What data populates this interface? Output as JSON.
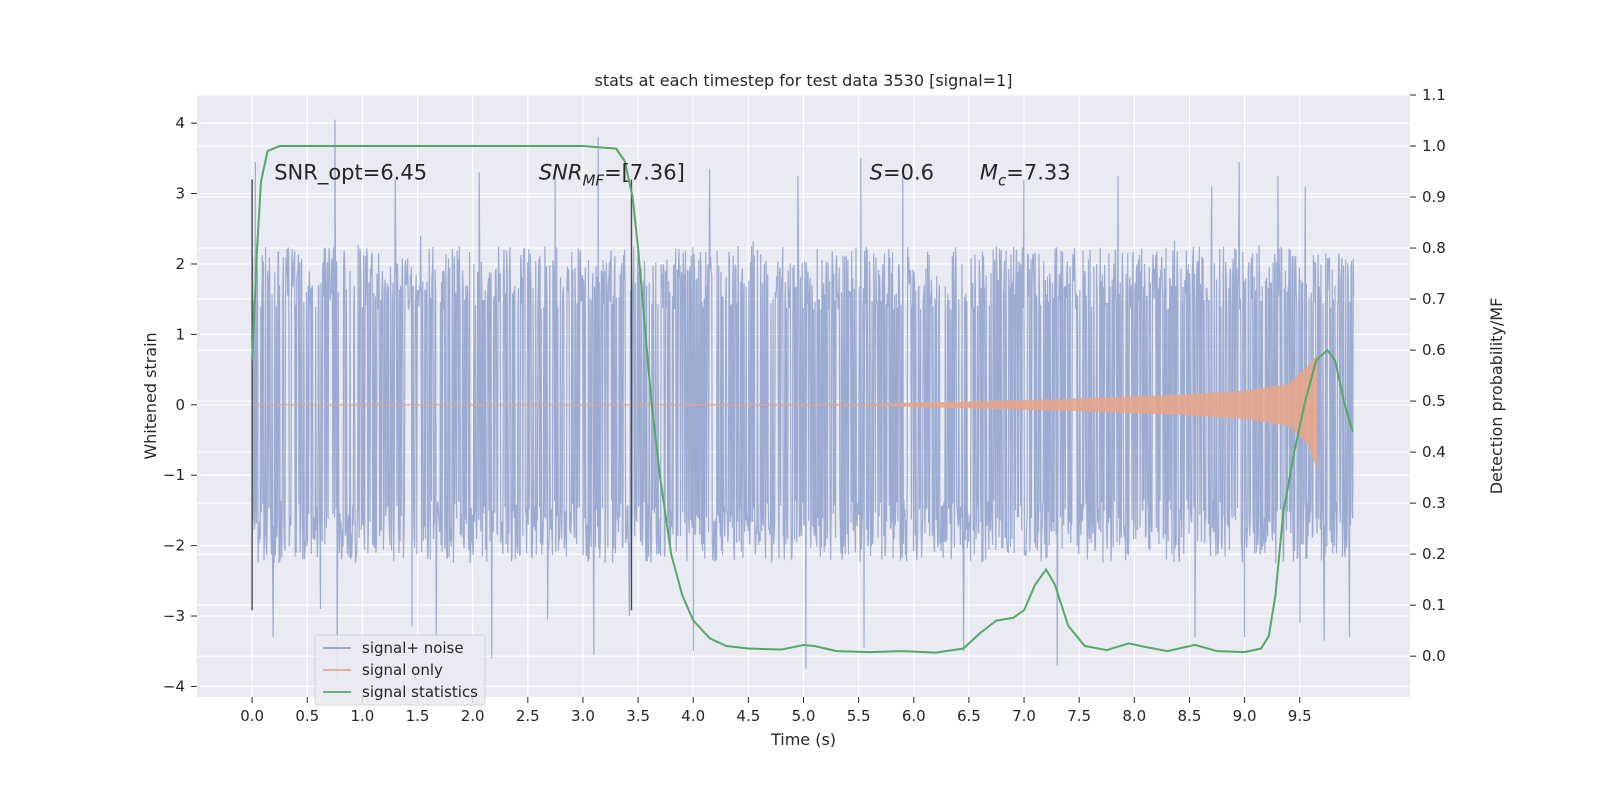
{
  "chart_data": {
    "type": "line",
    "title": "stats at each timestep for test data 3530 [signal=1]",
    "xlabel": "Time (s)",
    "ylabel": "Whitened strain",
    "y2label": "Detection probability/MF",
    "xlim": [
      -0.5,
      10.5
    ],
    "ylim": [
      -4.15,
      4.4
    ],
    "y2lim": [
      -0.08,
      1.1
    ],
    "grid": true,
    "xticks": [
      0.0,
      0.5,
      1.0,
      1.5,
      2.0,
      2.5,
      3.0,
      3.5,
      4.0,
      4.5,
      5.0,
      5.5,
      6.0,
      6.5,
      7.0,
      7.5,
      8.0,
      8.5,
      9.0,
      9.5
    ],
    "xtick_labels": [
      "0.0",
      "0.5",
      "1.0",
      "1.5",
      "2.0",
      "2.5",
      "3.0",
      "3.5",
      "4.0",
      "4.5",
      "5.0",
      "5.5",
      "6.0",
      "6.5",
      "7.0",
      "7.5",
      "8.0",
      "8.5",
      "9.0",
      "9.5"
    ],
    "yticks": [
      4,
      3,
      2,
      1,
      0,
      -1,
      -2,
      -3,
      -4
    ],
    "ytick_labels": [
      "4",
      "3",
      "2",
      "1",
      "0",
      "−1",
      "−2",
      "−3",
      "−4"
    ],
    "y2ticks": [
      1.1,
      1.0,
      0.9,
      0.8,
      0.7,
      0.6,
      0.5,
      0.4,
      0.3,
      0.2,
      0.1,
      0.0
    ],
    "y2tick_labels": [
      "1.1",
      "1.0",
      "0.9",
      "0.8",
      "0.7",
      "0.6",
      "0.5",
      "0.4",
      "0.3",
      "0.2",
      "0.1",
      "0.0"
    ],
    "legend_position": "lower-left",
    "vlines": [
      {
        "x": 0.0,
        "ymin": -2.92,
        "ymax": 3.2
      },
      {
        "x": 3.44,
        "ymin": -2.92,
        "ymax": 3.2
      }
    ],
    "annotations": [
      {
        "text": "SNR_opt=6.45",
        "x": 0.2,
        "y": 3.3
      },
      {
        "text_base": "SNR",
        "text_sub": "MF",
        "text_rest": "=[7.36]",
        "x": 2.6,
        "y": 3.3
      },
      {
        "text_base": "S",
        "text_rest": "=0.6",
        "x": 5.6,
        "y": 3.3
      },
      {
        "text_base": "M",
        "text_sub": "c",
        "text_rest": "=7.33",
        "x": 6.6,
        "y": 3.3
      }
    ],
    "series": [
      {
        "name": "signal+ noise",
        "color": "#8da0cb",
        "x_range": [
          0.0,
          9.99
        ],
        "sample_count": 2048,
        "band_abs_y": 1.35,
        "typical_min": -2.2,
        "typical_max": 2.4,
        "extremes": [
          {
            "x": 0.03,
            "y": 3.45
          },
          {
            "x": 0.19,
            "y": 3.38
          },
          {
            "x": 0.75,
            "y": 4.05
          },
          {
            "x": 0.62,
            "y": -2.9
          },
          {
            "x": 1.45,
            "y": -3.15
          },
          {
            "x": 1.3,
            "y": 3.2
          },
          {
            "x": 2.06,
            "y": 3.3
          },
          {
            "x": 2.68,
            "y": -3.05
          },
          {
            "x": 2.75,
            "y": 3.35
          },
          {
            "x": 3.1,
            "y": -3.55
          },
          {
            "x": 3.14,
            "y": 3.8
          },
          {
            "x": 3.42,
            "y": -3.0
          },
          {
            "x": 0.19,
            "y": -3.3
          },
          {
            "x": 0.77,
            "y": -3.9
          },
          {
            "x": 1.67,
            "y": -3.35
          },
          {
            "x": 2.17,
            "y": -3.6
          },
          {
            "x": 4.0,
            "y": -3.5
          },
          {
            "x": 4.15,
            "y": 3.35
          },
          {
            "x": 4.95,
            "y": 3.25
          },
          {
            "x": 5.02,
            "y": -3.75
          },
          {
            "x": 5.52,
            "y": 3.5
          },
          {
            "x": 5.55,
            "y": -3.45
          },
          {
            "x": 5.9,
            "y": 3.25
          },
          {
            "x": 6.45,
            "y": -3.5
          },
          {
            "x": 7.0,
            "y": 3.2
          },
          {
            "x": 7.3,
            "y": -3.7
          },
          {
            "x": 7.85,
            "y": 3.25
          },
          {
            "x": 8.55,
            "y": -3.3
          },
          {
            "x": 8.7,
            "y": 3.1
          },
          {
            "x": 8.95,
            "y": 3.45
          },
          {
            "x": 9.0,
            "y": -3.3
          },
          {
            "x": 9.55,
            "y": 3.1
          },
          {
            "x": 9.72,
            "y": -3.35
          },
          {
            "x": 9.95,
            "y": -3.3
          },
          {
            "x": 9.5,
            "y": -3.1
          },
          {
            "x": 9.3,
            "y": 3.25
          }
        ]
      },
      {
        "name": "signal only",
        "color": "#e8a488",
        "description_points": [
          {
            "x": 0.0,
            "amp": 0.0
          },
          {
            "x": 5.5,
            "amp": 0.01
          },
          {
            "x": 6.5,
            "amp": 0.05
          },
          {
            "x": 7.5,
            "amp": 0.09
          },
          {
            "x": 8.5,
            "amp": 0.15
          },
          {
            "x": 9.0,
            "amp": 0.2
          },
          {
            "x": 9.4,
            "amp": 0.3
          },
          {
            "x": 9.6,
            "amp": 0.6
          },
          {
            "x": 9.66,
            "amp": 0.72
          },
          {
            "x": 9.67,
            "amp": 0.0
          }
        ],
        "min_value": -0.9,
        "max_value": 0.72
      },
      {
        "name": "signal statistics",
        "color": "#55a868",
        "axis": "right",
        "points": [
          [
            0.0,
            0.58
          ],
          [
            0.04,
            0.78
          ],
          [
            0.08,
            0.93
          ],
          [
            0.14,
            0.99
          ],
          [
            0.25,
            1.0
          ],
          [
            1.0,
            1.0
          ],
          [
            2.0,
            1.0
          ],
          [
            3.0,
            1.0
          ],
          [
            3.3,
            0.995
          ],
          [
            3.38,
            0.97
          ],
          [
            3.45,
            0.9
          ],
          [
            3.5,
            0.8
          ],
          [
            3.56,
            0.65
          ],
          [
            3.62,
            0.5
          ],
          [
            3.7,
            0.35
          ],
          [
            3.8,
            0.2
          ],
          [
            3.9,
            0.12
          ],
          [
            4.0,
            0.07
          ],
          [
            4.15,
            0.035
          ],
          [
            4.3,
            0.02
          ],
          [
            4.5,
            0.015
          ],
          [
            4.8,
            0.013
          ],
          [
            5.0,
            0.022
          ],
          [
            5.1,
            0.02
          ],
          [
            5.3,
            0.01
          ],
          [
            5.6,
            0.008
          ],
          [
            5.9,
            0.01
          ],
          [
            6.2,
            0.007
          ],
          [
            6.45,
            0.015
          ],
          [
            6.6,
            0.045
          ],
          [
            6.75,
            0.07
          ],
          [
            6.9,
            0.075
          ],
          [
            7.0,
            0.09
          ],
          [
            7.1,
            0.14
          ],
          [
            7.2,
            0.17
          ],
          [
            7.28,
            0.14
          ],
          [
            7.4,
            0.06
          ],
          [
            7.55,
            0.02
          ],
          [
            7.75,
            0.012
          ],
          [
            7.95,
            0.025
          ],
          [
            8.1,
            0.018
          ],
          [
            8.3,
            0.01
          ],
          [
            8.55,
            0.022
          ],
          [
            8.75,
            0.01
          ],
          [
            9.0,
            0.008
          ],
          [
            9.15,
            0.015
          ],
          [
            9.22,
            0.04
          ],
          [
            9.28,
            0.12
          ],
          [
            9.35,
            0.28
          ],
          [
            9.45,
            0.4
          ],
          [
            9.55,
            0.5
          ],
          [
            9.65,
            0.58
          ],
          [
            9.75,
            0.6
          ],
          [
            9.82,
            0.58
          ],
          [
            9.9,
            0.5
          ],
          [
            9.98,
            0.44
          ]
        ]
      }
    ]
  }
}
